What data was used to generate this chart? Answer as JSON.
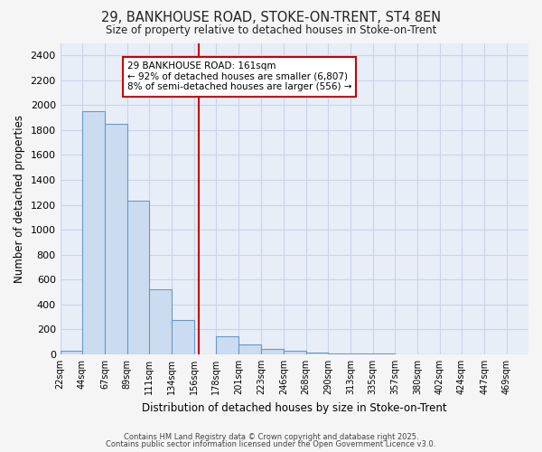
{
  "title": "29, BANKHOUSE ROAD, STOKE-ON-TRENT, ST4 8EN",
  "subtitle": "Size of property relative to detached houses in Stoke-on-Trent",
  "xlabel": "Distribution of detached houses by size in Stoke-on-Trent",
  "ylabel": "Number of detached properties",
  "bin_labels": [
    "22sqm",
    "44sqm",
    "67sqm",
    "89sqm",
    "111sqm",
    "134sqm",
    "156sqm",
    "178sqm",
    "201sqm",
    "223sqm",
    "246sqm",
    "268sqm",
    "290sqm",
    "313sqm",
    "335sqm",
    "357sqm",
    "380sqm",
    "402sqm",
    "424sqm",
    "447sqm",
    "469sqm"
  ],
  "bin_edges": [
    22,
    44,
    67,
    89,
    111,
    134,
    156,
    178,
    201,
    223,
    246,
    268,
    290,
    313,
    335,
    357,
    380,
    402,
    424,
    447,
    469,
    491
  ],
  "bar_heights": [
    30,
    1950,
    1850,
    1230,
    520,
    275,
    0,
    145,
    80,
    45,
    30,
    15,
    8,
    4,
    4,
    2,
    2,
    1,
    1,
    0,
    0
  ],
  "bar_color": "#ccdcf0",
  "bar_edgecolor": "#6699cc",
  "grid_color": "#c8d4e8",
  "bg_color": "#e8eef8",
  "fig_bg_color": "#f5f5f5",
  "red_line_x": 161,
  "ylim": [
    0,
    2500
  ],
  "yticks": [
    0,
    200,
    400,
    600,
    800,
    1000,
    1200,
    1400,
    1600,
    1800,
    2000,
    2200,
    2400
  ],
  "annotation_title": "29 BANKHOUSE ROAD: 161sqm",
  "annotation_line1": "← 92% of detached houses are smaller (6,807)",
  "annotation_line2": "8% of semi-detached houses are larger (556) →",
  "annotation_box_color": "#ffffff",
  "annotation_box_edgecolor": "#cc0000",
  "footer1": "Contains HM Land Registry data © Crown copyright and database right 2025.",
  "footer2": "Contains public sector information licensed under the Open Government Licence v3.0."
}
